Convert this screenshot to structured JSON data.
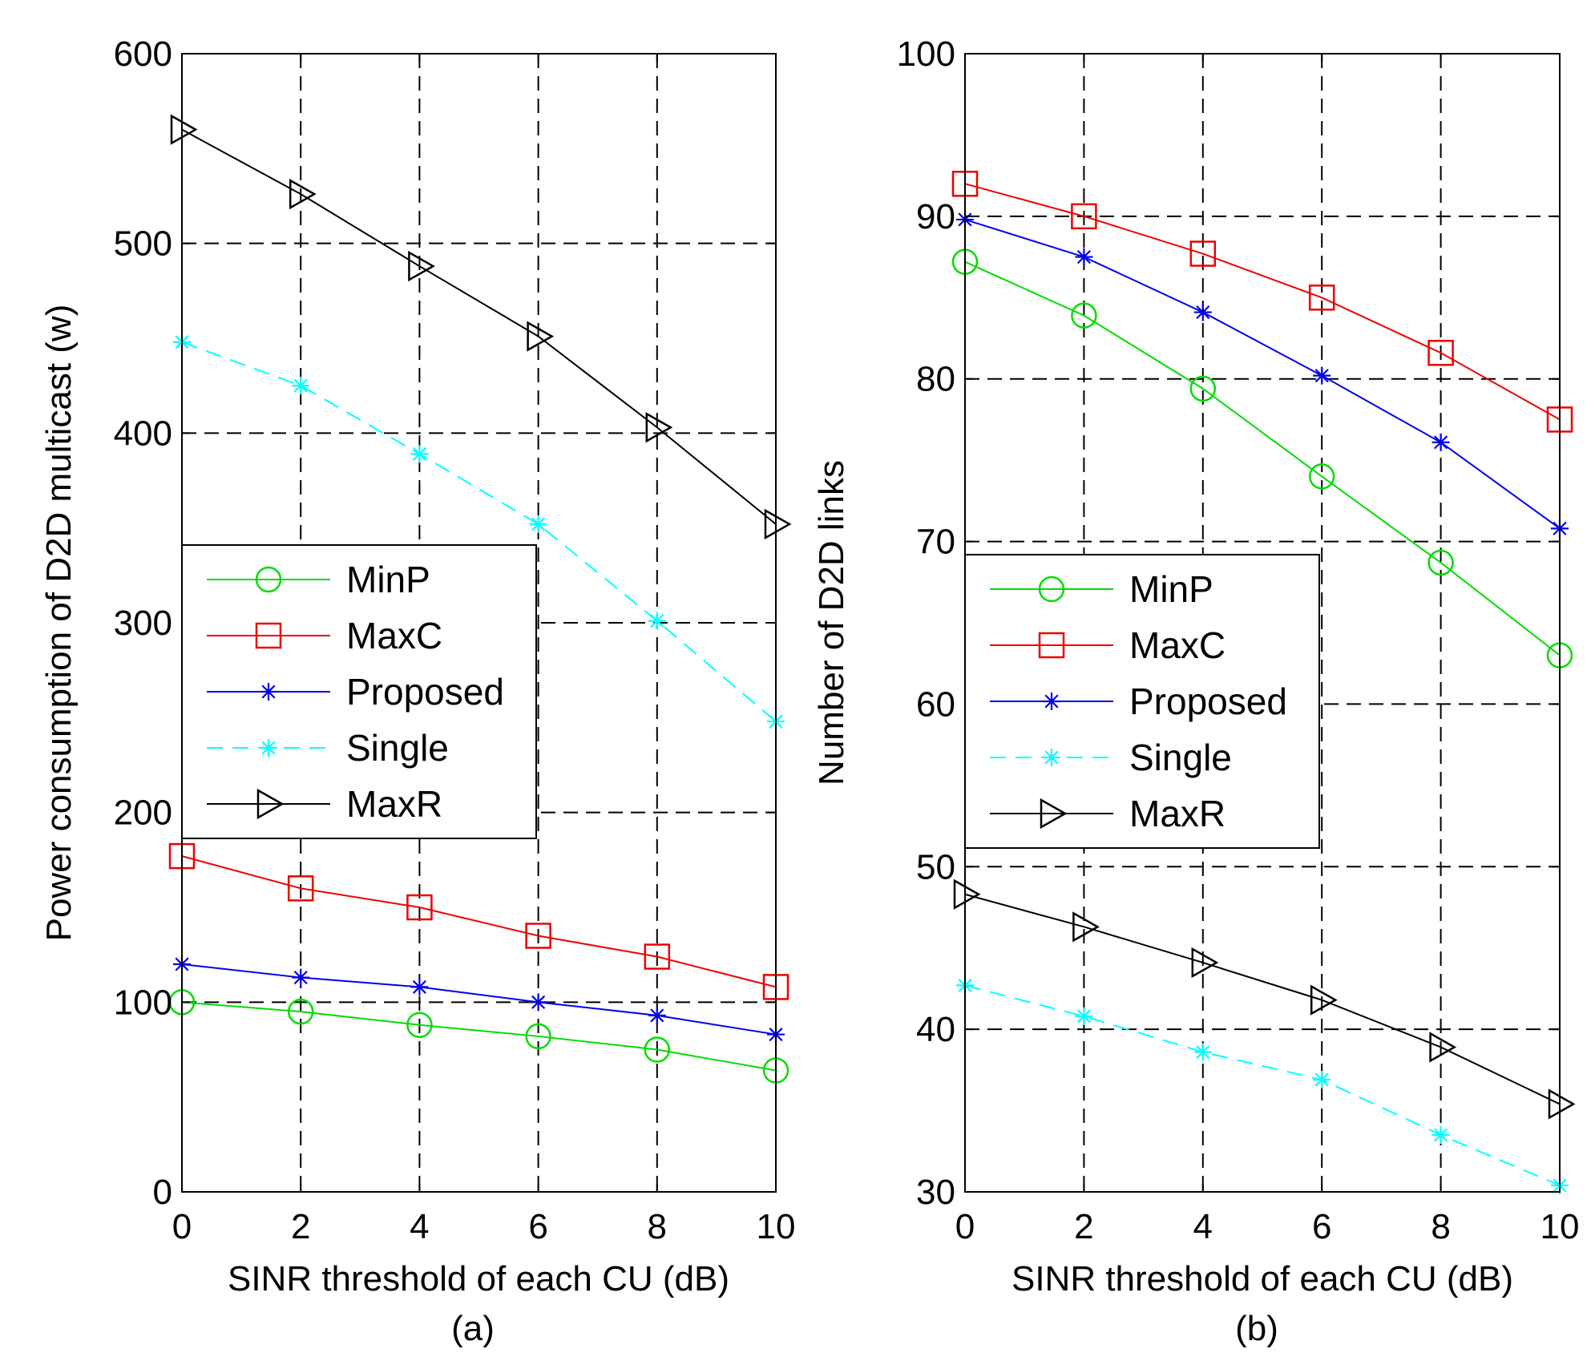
{
  "chart_data": [
    {
      "type": "line",
      "id": "a",
      "caption": "(a)",
      "xlabel": "SINR threshold of each CU (dB)",
      "ylabel": "Power consumption of D2D multicast (w)",
      "xlim": [
        0,
        10
      ],
      "ylim": [
        0,
        600
      ],
      "xticks": [
        0,
        2,
        4,
        6,
        8,
        10
      ],
      "yticks": [
        0,
        100,
        200,
        300,
        400,
        500,
        600
      ],
      "grid": true,
      "legend_position": "middle-left",
      "x": [
        0,
        2,
        4,
        6,
        8,
        10
      ],
      "series": [
        {
          "name": "MinP",
          "color": "#00dd00",
          "marker": "circle",
          "dash": "solid",
          "values": [
            100,
            95,
            88,
            82,
            75,
            64
          ]
        },
        {
          "name": "MaxC",
          "color": "#ee0000",
          "marker": "square",
          "dash": "solid",
          "values": [
            177,
            160,
            150,
            135,
            124,
            108
          ]
        },
        {
          "name": "Proposed",
          "color": "#0000ee",
          "marker": "star",
          "dash": "solid",
          "values": [
            120,
            113,
            108,
            100,
            93,
            83
          ]
        },
        {
          "name": "Single",
          "color": "#00ffff",
          "marker": "star",
          "dash": "dashed",
          "values": [
            448,
            425,
            389,
            352,
            301,
            248
          ]
        },
        {
          "name": "MaxR",
          "color": "#000000",
          "marker": "triangle-right",
          "dash": "solid",
          "values": [
            560,
            526,
            488,
            451,
            403,
            352
          ]
        }
      ]
    },
    {
      "type": "line",
      "id": "b",
      "caption": "(b)",
      "xlabel": "SINR threshold of each CU (dB)",
      "ylabel": "Number of D2D links",
      "xlim": [
        0,
        10
      ],
      "ylim": [
        30,
        100
      ],
      "xticks": [
        0,
        2,
        4,
        6,
        8,
        10
      ],
      "yticks": [
        30,
        40,
        50,
        60,
        70,
        80,
        90,
        100
      ],
      "grid": true,
      "legend_position": "middle-left",
      "x": [
        0,
        2,
        4,
        6,
        8,
        10
      ],
      "series": [
        {
          "name": "MinP",
          "color": "#00dd00",
          "marker": "circle",
          "dash": "solid",
          "values": [
            87.2,
            83.9,
            79.4,
            74.0,
            68.7,
            63.0
          ]
        },
        {
          "name": "MaxC",
          "color": "#ee0000",
          "marker": "square",
          "dash": "solid",
          "values": [
            92.0,
            90.0,
            87.7,
            85.0,
            81.6,
            77.5
          ]
        },
        {
          "name": "Proposed",
          "color": "#0000ee",
          "marker": "star",
          "dash": "solid",
          "values": [
            89.8,
            87.5,
            84.1,
            80.2,
            76.1,
            70.8
          ]
        },
        {
          "name": "Single",
          "color": "#00ffff",
          "marker": "star",
          "dash": "dashed",
          "values": [
            42.7,
            40.8,
            38.6,
            36.9,
            33.5,
            30.4
          ]
        },
        {
          "name": "MaxR",
          "color": "#000000",
          "marker": "triangle-right",
          "dash": "solid",
          "values": [
            48.3,
            46.3,
            44.1,
            41.8,
            38.9,
            35.4
          ]
        }
      ]
    }
  ]
}
